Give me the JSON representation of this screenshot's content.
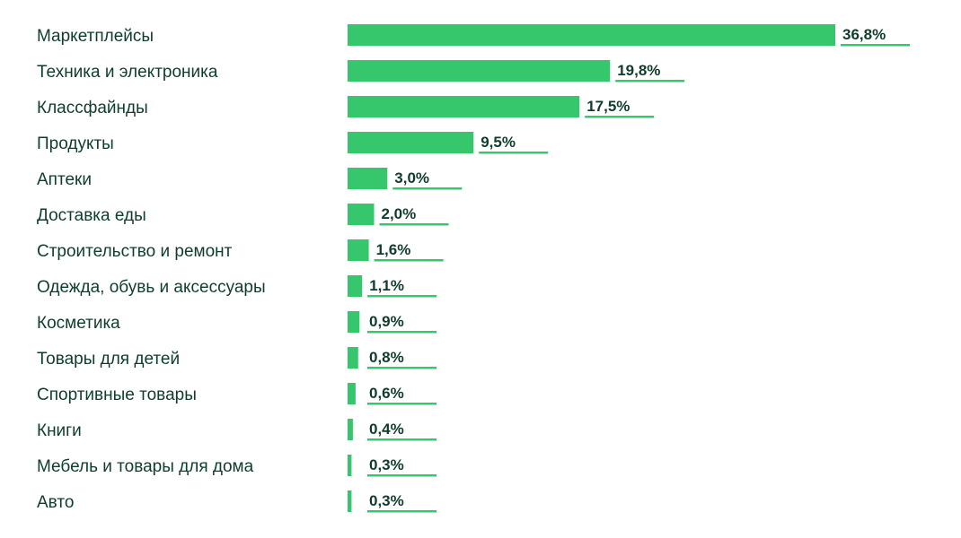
{
  "chart_data": {
    "type": "bar",
    "orientation": "horizontal",
    "title": "",
    "xlabel": "",
    "ylabel": "",
    "categories": [
      "Маркетплейсы",
      "Техника и электроника",
      "Классфайнды",
      "Продукты",
      "Аптеки",
      "Доставка еды",
      "Строительство и ремонт",
      "Одежда, обувь и аксессуары",
      "Косметика",
      "Товары для детей",
      "Спортивные товары",
      "Книги",
      "Мебель и товары для дома",
      "Авто"
    ],
    "values": [
      36.8,
      19.8,
      17.5,
      9.5,
      3.0,
      2.0,
      1.6,
      1.1,
      0.9,
      0.8,
      0.6,
      0.4,
      0.3,
      0.3
    ],
    "value_labels": [
      "36,8%",
      "19,8%",
      "17,5%",
      "9,5%",
      "3,0%",
      "2,0%",
      "1,6%",
      "1,1%",
      "0,9%",
      "0,8%",
      "0,6%",
      "0,4%",
      "0,3%",
      "0,3%"
    ],
    "unit": "%",
    "xlim": [
      0,
      36.8
    ],
    "grid": false,
    "legend": "none",
    "colors": {
      "bar": "#36c76c",
      "underline": "#36c76c",
      "text": "#0f3d2a"
    }
  }
}
